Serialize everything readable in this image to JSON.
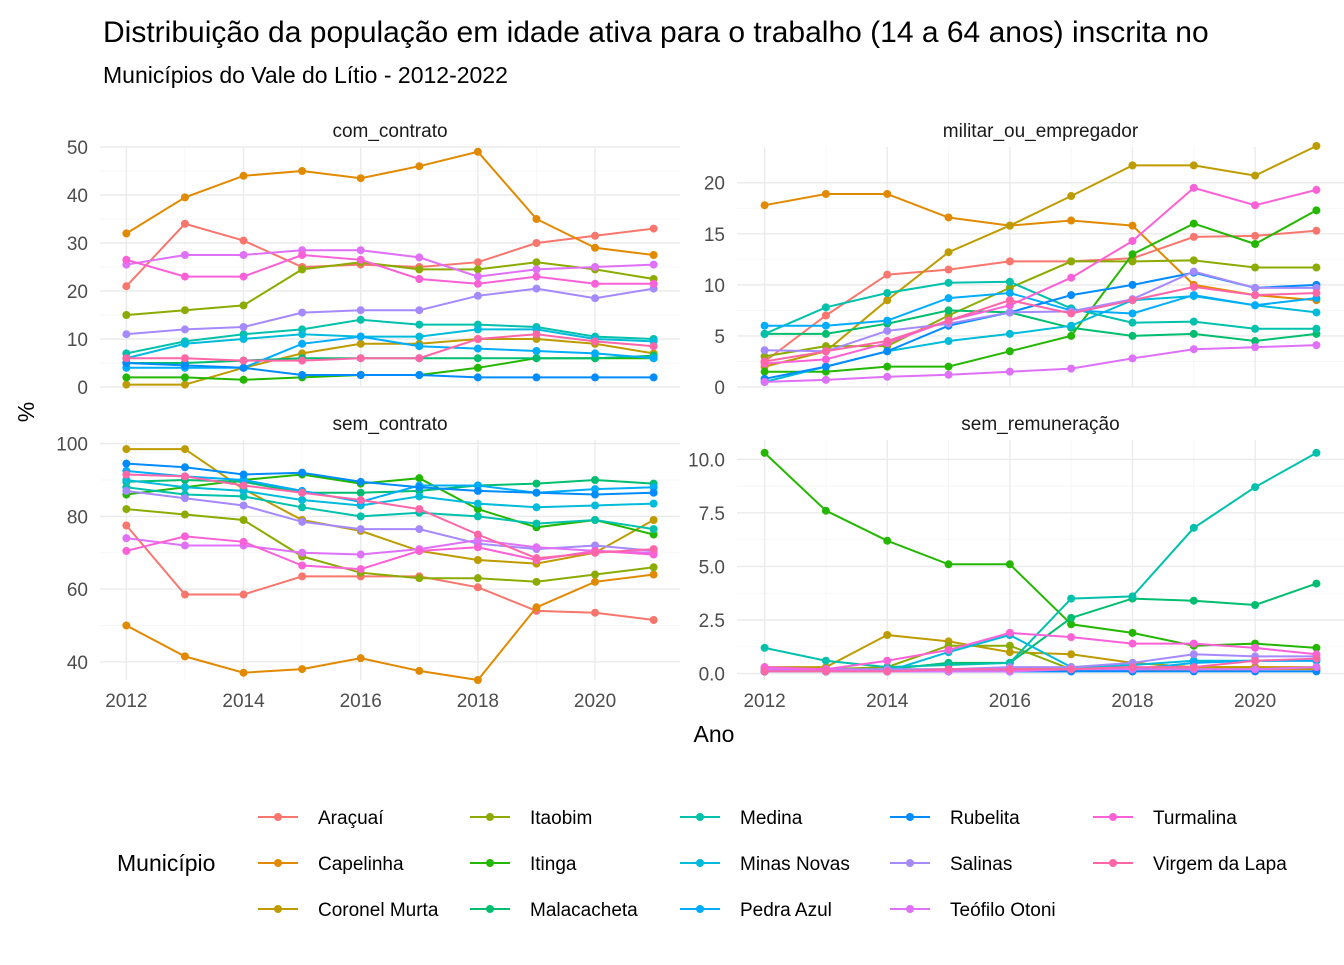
{
  "chart_data": {
    "type": "line",
    "title": "Distribuição da população em idade ativa para o trabalho (14 a 64 anos) inscrita no",
    "subtitle": "Municípios do Vale do Lítio - 2012-2022",
    "xlabel": "Ano",
    "ylabel": "%",
    "x": [
      2012,
      2013,
      2014,
      2015,
      2016,
      2017,
      2018,
      2019,
      2020,
      2021
    ],
    "legend": {
      "title": "Município",
      "placement": "bottom",
      "entries": [
        {
          "name": "Araçuaí",
          "color": "#F8766D"
        },
        {
          "name": "Capelinha",
          "color": "#E18A00"
        },
        {
          "name": "Coronel Murta",
          "color": "#BE9C00"
        },
        {
          "name": "Itaobim",
          "color": "#8CAB00"
        },
        {
          "name": "Itinga",
          "color": "#24B700"
        },
        {
          "name": "Malacacheta",
          "color": "#00BE70"
        },
        {
          "name": "Medina",
          "color": "#00C1AB"
        },
        {
          "name": "Minas Novas",
          "color": "#00BBDA"
        },
        {
          "name": "Pedra Azul",
          "color": "#00ACFC"
        },
        {
          "name": "Rubelita",
          "color": "#008BFF"
        },
        {
          "name": "Salinas",
          "color": "#A58AFF"
        },
        {
          "name": "Teófilo Otoni",
          "color": "#DF70F8"
        },
        {
          "name": "Turmalina",
          "color": "#FB61D7"
        },
        {
          "name": "Virgem da Lapa",
          "color": "#FF66A8"
        }
      ]
    },
    "panels": [
      {
        "name": "com_contrato",
        "ylim": [
          0,
          50
        ],
        "yticks": [
          0,
          10,
          20,
          30,
          40,
          50
        ],
        "series": [
          {
            "name": "Araçuaí",
            "values": [
              21,
              34,
              30.5,
              25,
              25.5,
              25,
              26,
              30,
              31.5,
              33
            ]
          },
          {
            "name": "Capelinha",
            "values": [
              32,
              39.5,
              44,
              45,
              43.5,
              46,
              49,
              35,
              29,
              27.5
            ]
          },
          {
            "name": "Coronel Murta",
            "values": [
              0.5,
              0.5,
              4,
              7,
              9,
              9,
              10,
              10,
              9,
              7
            ]
          },
          {
            "name": "Itaobim",
            "values": [
              15,
              16,
              17,
              24.5,
              26,
              24.5,
              24.5,
              26,
              24.5,
              22.5
            ]
          },
          {
            "name": "Itinga",
            "values": [
              2,
              2,
              1.5,
              2,
              2.5,
              2.5,
              4,
              6,
              6,
              6
            ]
          },
          {
            "name": "Malacacheta",
            "values": [
              5,
              5,
              5.5,
              6,
              6,
              6,
              6,
              6,
              6,
              6.5
            ]
          },
          {
            "name": "Medina",
            "values": [
              7,
              9.5,
              11,
              12,
              14,
              13,
              13,
              12.5,
              10.5,
              10
            ]
          },
          {
            "name": "Minas Novas",
            "values": [
              6,
              9,
              10,
              11,
              10.5,
              10.5,
              12,
              12,
              10,
              9.5
            ]
          },
          {
            "name": "Pedra Azul",
            "values": [
              4,
              4,
              4,
              9,
              10.5,
              8.5,
              8,
              7.5,
              7,
              6
            ]
          },
          {
            "name": "Rubelita",
            "values": [
              5,
              4.5,
              4,
              2.5,
              2.5,
              2.5,
              2,
              2,
              2,
              2
            ]
          },
          {
            "name": "Salinas",
            "values": [
              11,
              12,
              12.5,
              15.5,
              16,
              16,
              19,
              20.5,
              18.5,
              20.5
            ]
          },
          {
            "name": "Teófilo Otoni",
            "values": [
              25.5,
              27.5,
              27.5,
              28.5,
              28.5,
              27,
              23,
              24.5,
              25,
              25.5
            ]
          },
          {
            "name": "Turmalina",
            "values": [
              26.5,
              23,
              23,
              27.5,
              26.5,
              22.5,
              21.5,
              23,
              21.5,
              21.5
            ]
          },
          {
            "name": "Virgem da Lapa",
            "values": [
              6,
              6,
              5.5,
              5.5,
              6,
              6,
              10,
              11,
              9.5,
              8.5
            ]
          }
        ]
      },
      {
        "name": "militar_ou_empregador",
        "ylim": [
          0,
          23.5
        ],
        "yticks": [
          0,
          5,
          10,
          15,
          20
        ],
        "series": [
          {
            "name": "Araçuaí",
            "values": [
              2.5,
              7,
              11,
              11.5,
              12.3,
              12.3,
              12.6,
              14.7,
              14.8,
              15.3
            ]
          },
          {
            "name": "Capelinha",
            "values": [
              17.8,
              18.9,
              18.9,
              16.6,
              15.8,
              16.3,
              15.8,
              10,
              9,
              8.5
            ]
          },
          {
            "name": "Coronel Murta",
            "values": [
              2,
              3.5,
              8.5,
              13.2,
              15.8,
              18.7,
              21.7,
              21.7,
              20.7,
              23.6
            ]
          },
          {
            "name": "Itaobim",
            "values": [
              3,
              4,
              4,
              7,
              9.7,
              12.3,
              12.3,
              12.4,
              11.7,
              11.7
            ]
          },
          {
            "name": "Itinga",
            "values": [
              1.5,
              1.5,
              2,
              2,
              3.5,
              5,
              13,
              16,
              14,
              17.3
            ]
          },
          {
            "name": "Malacacheta",
            "values": [
              5.2,
              5.2,
              6.2,
              7.5,
              7.3,
              5.8,
              5,
              5.2,
              4.5,
              5.2
            ]
          },
          {
            "name": "Medina",
            "values": [
              5.2,
              7.8,
              9.2,
              10.2,
              10.3,
              7.7,
              6.3,
              6.4,
              5.7,
              5.7
            ]
          },
          {
            "name": "Minas Novas",
            "values": [
              0.5,
              2,
              3.5,
              4.5,
              5.2,
              6,
              8.5,
              8.9,
              8,
              7.3
            ]
          },
          {
            "name": "Pedra Azul",
            "values": [
              6,
              6,
              6.5,
              8.7,
              9.2,
              7.5,
              7.2,
              9,
              8,
              8.7
            ]
          },
          {
            "name": "Rubelita",
            "values": [
              0.8,
              2,
              3.5,
              6,
              7.3,
              9,
              10,
              11.2,
              9.7,
              10
            ]
          },
          {
            "name": "Salinas",
            "values": [
              3.6,
              3.5,
              5.5,
              6.2,
              7.3,
              7.4,
              8.6,
              11.3,
              9.7,
              9.7
            ]
          },
          {
            "name": "Teófilo Otoni",
            "values": [
              0.5,
              0.7,
              1,
              1.2,
              1.5,
              1.8,
              2.8,
              3.7,
              3.9,
              4.1
            ]
          },
          {
            "name": "Turmalina",
            "values": [
              2.3,
              2.7,
              4.3,
              6.5,
              8,
              10.7,
              14.3,
              19.5,
              17.8,
              19.3
            ]
          },
          {
            "name": "Virgem da Lapa",
            "values": [
              2.5,
              3.5,
              4.5,
              6.5,
              8.5,
              7.2,
              8.5,
              9.8,
              9,
              9.2
            ]
          }
        ]
      },
      {
        "name": "sem_contrato",
        "ylim": [
          35,
          101
        ],
        "yticks": [
          40,
          60,
          80,
          100
        ],
        "series": [
          {
            "name": "Araçuaí",
            "values": [
              77.5,
              58.5,
              58.5,
              63.5,
              63.5,
              63.5,
              60.5,
              54,
              53.5,
              51.5
            ]
          },
          {
            "name": "Capelinha",
            "values": [
              50,
              41.5,
              37,
              38,
              41,
              37.5,
              35,
              55,
              62,
              64
            ]
          },
          {
            "name": "Coronel Murta",
            "values": [
              98.5,
              98.5,
              87.5,
              79,
              76,
              70.5,
              68,
              67,
              70,
              79
            ]
          },
          {
            "name": "Itaobim",
            "values": [
              82,
              80.5,
              79,
              69,
              64.5,
              63,
              63,
              62,
              64,
              66
            ]
          },
          {
            "name": "Itinga",
            "values": [
              86,
              88,
              90,
              91.5,
              89,
              90.5,
              82,
              77,
              79,
              75
            ]
          },
          {
            "name": "Malacacheta",
            "values": [
              89.5,
              90,
              89.5,
              86.5,
              86.5,
              87,
              88.5,
              89,
              90,
              89
            ]
          },
          {
            "name": "Medina",
            "values": [
              88,
              86,
              85.5,
              82.5,
              80,
              81,
              80,
              78,
              79,
              76.5
            ]
          },
          {
            "name": "Minas Novas",
            "values": [
              90,
              88,
              87,
              84.5,
              83,
              85.5,
              83.5,
              82.5,
              83,
              83.5
            ]
          },
          {
            "name": "Pedra Azul",
            "values": [
              92.5,
              91,
              90,
              87,
              84,
              88.5,
              88.5,
              86.5,
              87.5,
              88
            ]
          },
          {
            "name": "Rubelita",
            "values": [
              94.5,
              93.5,
              91.5,
              92,
              89.5,
              88,
              87,
              86.5,
              86,
              86.5
            ]
          },
          {
            "name": "Salinas",
            "values": [
              87,
              85,
              83,
              78.5,
              76.5,
              76.5,
              72.5,
              71,
              72,
              70.5
            ]
          },
          {
            "name": "Teófilo Otoni",
            "values": [
              74,
              72,
              72,
              70,
              69.5,
              71,
              73.5,
              71.5,
              70.5,
              70
            ]
          },
          {
            "name": "Turmalina",
            "values": [
              70.5,
              74.5,
              73,
              66.5,
              65.5,
              70.5,
              71.5,
              68,
              70.5,
              69.5
            ]
          },
          {
            "name": "Virgem da Lapa",
            "values": [
              91.5,
              91,
              88.5,
              86.5,
              84.5,
              82,
              75,
              68.5,
              70,
              71
            ]
          }
        ]
      },
      {
        "name": "sem_remuneração",
        "ylim": [
          -0.3,
          10.9
        ],
        "yticks": [
          0.0,
          2.5,
          5.0,
          7.5,
          10.0
        ],
        "ytick_labels": [
          "0.0",
          "2.5",
          "5.0",
          "7.5",
          "10.0"
        ],
        "series": [
          {
            "name": "Araçuaí",
            "values": [
              0.1,
              0.1,
              0.1,
              0.2,
              0.2,
              0.3,
              0.3,
              0.2,
              0.2,
              0.2
            ]
          },
          {
            "name": "Capelinha",
            "values": [
              0.1,
              0.1,
              0.2,
              0.2,
              0.2,
              0.2,
              0.2,
              0.3,
              0.3,
              0.3
            ]
          },
          {
            "name": "Coronel Murta",
            "values": [
              0.3,
              0.3,
              1.8,
              1.5,
              1,
              0.9,
              0.5,
              0.3,
              0.3,
              0.2
            ]
          },
          {
            "name": "Itaobim",
            "values": [
              0.2,
              0.2,
              0.3,
              1.3,
              1.3,
              0.2,
              0.1,
              0.2,
              0.2,
              0.3
            ]
          },
          {
            "name": "Itinga",
            "values": [
              10.3,
              7.6,
              6.2,
              5.1,
              5.1,
              2.3,
              1.9,
              1.3,
              1.4,
              1.2
            ]
          },
          {
            "name": "Malacacheta",
            "values": [
              0.1,
              0.1,
              0.2,
              0.5,
              0.5,
              2.6,
              3.5,
              3.4,
              3.2,
              4.2
            ]
          },
          {
            "name": "Medina",
            "values": [
              1.2,
              0.6,
              0.3,
              0.4,
              0.5,
              3.5,
              3.6,
              6.8,
              8.7,
              10.3
            ]
          },
          {
            "name": "Minas Novas",
            "values": [
              0.1,
              0.1,
              0.1,
              1,
              1.8,
              0.3,
              0.4,
              0.6,
              0.6,
              0.6
            ]
          },
          {
            "name": "Pedra Azul",
            "values": [
              0.1,
              0.1,
              0.1,
              0.1,
              0.1,
              0.1,
              0.2,
              0.5,
              0.6,
              0.6
            ]
          },
          {
            "name": "Rubelita",
            "values": [
              0.1,
              0.1,
              0.1,
              0.1,
              0.1,
              0.1,
              0.1,
              0.1,
              0.1,
              0.1
            ]
          },
          {
            "name": "Salinas",
            "values": [
              0.2,
              0.2,
              0.2,
              0.2,
              0.3,
              0.3,
              0.5,
              0.9,
              0.8,
              0.8
            ]
          },
          {
            "name": "Teófilo Otoni",
            "values": [
              0.2,
              0.2,
              0.1,
              0.1,
              0.1,
              0.2,
              0.2,
              0.2,
              0.2,
              0.3
            ]
          },
          {
            "name": "Turmalina",
            "values": [
              0.3,
              0.2,
              0.6,
              1.1,
              1.9,
              1.7,
              1.4,
              1.4,
              1.2,
              0.9
            ]
          },
          {
            "name": "Virgem da Lapa",
            "values": [
              0.1,
              0.1,
              0.1,
              0.2,
              0.2,
              0.2,
              0.3,
              0.3,
              0.6,
              0.7
            ]
          }
        ]
      }
    ]
  }
}
